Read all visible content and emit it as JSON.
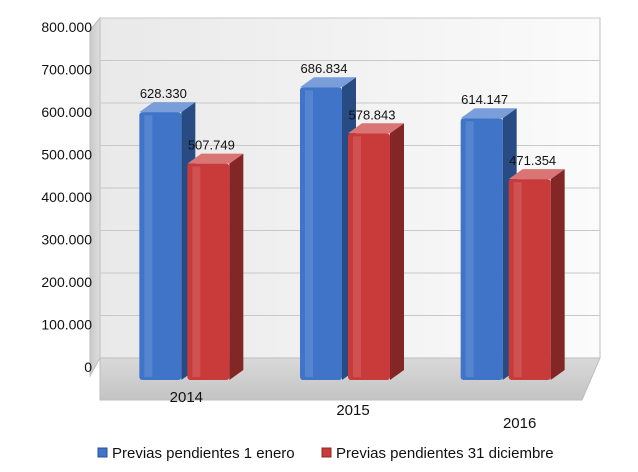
{
  "chart_data": {
    "type": "bar",
    "title": "",
    "xlabel": "",
    "ylabel": "",
    "categories": [
      "2014",
      "2015",
      "2016"
    ],
    "series": [
      {
        "name": "Previas pendientes 1 enero",
        "color": "#3f74c9",
        "values": [
          628330,
          686834,
          614147
        ],
        "labels": [
          "628.330",
          "686.834",
          "614.147"
        ]
      },
      {
        "name": "Previas pendientes 31 diciembre",
        "color": "#c93a3a",
        "values": [
          507749,
          578843,
          471354
        ],
        "labels": [
          "507.749",
          "578.843",
          "471.354"
        ]
      }
    ],
    "ylim": [
      0,
      800000
    ],
    "yticks": [
      0,
      100000,
      200000,
      300000,
      400000,
      500000,
      600000,
      700000,
      800000
    ],
    "ytick_labels": [
      "0",
      "100.000",
      "200.000",
      "300.000",
      "400.000",
      "500.000",
      "600.000",
      "700.000",
      "800.000"
    ],
    "grid": true,
    "legend_position": "bottom",
    "style": "3d-clustered-column"
  }
}
